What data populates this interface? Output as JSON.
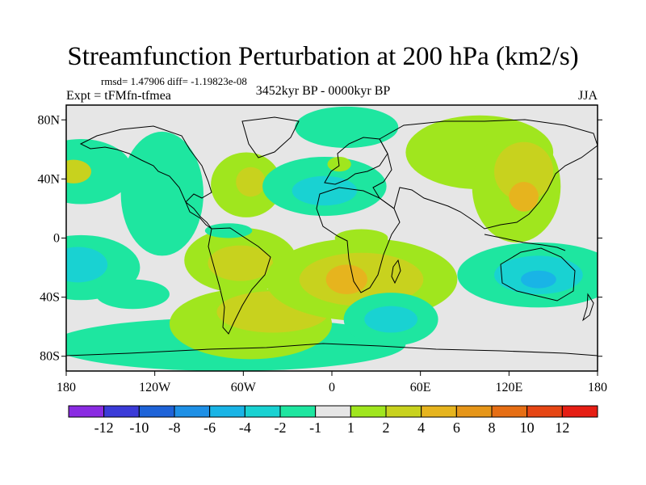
{
  "title": "Streamfunction Perturbation at 200 hPa (km2/s)",
  "stats": "rmsd= 1.47906 diff= -1.19823e-08",
  "experiment": "Expt = tFMfn-tfmea",
  "period": "3452kyr BP - 0000kyr BP",
  "season": "JJA",
  "map": {
    "lat_ticks": [
      {
        "label": "80N",
        "value": 80
      },
      {
        "label": "40N",
        "value": 40
      },
      {
        "label": "0",
        "value": 0
      },
      {
        "label": "40S",
        "value": -40
      },
      {
        "label": "80S",
        "value": -80
      }
    ],
    "lon_ticks": [
      {
        "label": "180",
        "value": -180
      },
      {
        "label": "120W",
        "value": -120
      },
      {
        "label": "60W",
        "value": -60
      },
      {
        "label": "0",
        "value": 0
      },
      {
        "label": "60E",
        "value": 60
      },
      {
        "label": "120E",
        "value": 120
      },
      {
        "label": "180",
        "value": 180
      }
    ],
    "lon_range": [
      -180,
      180
    ],
    "lat_range": [
      -90,
      90
    ],
    "background_color": "#e6e6e6"
  },
  "colorbar": {
    "colors": [
      "#8a2be2",
      "#3b3bd8",
      "#1e63d8",
      "#1e90e6",
      "#19b4e6",
      "#19d2d2",
      "#1ee6a0",
      "#e6e6e6",
      "#a0e61e",
      "#c8d21e",
      "#e6b41e",
      "#e69619",
      "#e66e14",
      "#e64614",
      "#e61e14"
    ],
    "labels": [
      "-12",
      "-10",
      "-8",
      "-6",
      "-4",
      "-2",
      "-1",
      "1",
      "2",
      "4",
      "6",
      "8",
      "10",
      "12"
    ]
  },
  "regions": [
    {
      "lon": -170,
      "lat": 45,
      "rx": 35,
      "ry": 22,
      "color": "#1ee6a0",
      "level": "-1"
    },
    {
      "lon": -175,
      "lat": 45,
      "rx": 12,
      "ry": 8,
      "color": "#c8d21e",
      "level": "4"
    },
    {
      "lon": -170,
      "lat": -20,
      "rx": 40,
      "ry": 22,
      "color": "#1ee6a0",
      "level": "-1"
    },
    {
      "lon": -172,
      "lat": -18,
      "rx": 20,
      "ry": 12,
      "color": "#19d2d2",
      "level": "-2"
    },
    {
      "lon": -135,
      "lat": -38,
      "rx": 25,
      "ry": 10,
      "color": "#1ee6a0",
      "level": "-1"
    },
    {
      "lon": -115,
      "lat": 30,
      "rx": 28,
      "ry": 42,
      "color": "#1ee6a0",
      "level": "-1"
    },
    {
      "lon": -70,
      "lat": -72,
      "rx": 120,
      "ry": 18,
      "color": "#1ee6a0",
      "level": "-1"
    },
    {
      "lon": -55,
      "lat": -58,
      "rx": 55,
      "ry": 24,
      "color": "#a0e61e",
      "level": "2"
    },
    {
      "lon": -40,
      "lat": -50,
      "rx": 38,
      "ry": 14,
      "color": "#c8d21e",
      "level": "4"
    },
    {
      "lon": -62,
      "lat": -15,
      "rx": 38,
      "ry": 22,
      "color": "#a0e61e",
      "level": "2"
    },
    {
      "lon": -62,
      "lat": -17,
      "rx": 22,
      "ry": 12,
      "color": "#c8d21e",
      "level": "4"
    },
    {
      "lon": -58,
      "lat": 36,
      "rx": 24,
      "ry": 22,
      "color": "#a0e61e",
      "level": "2"
    },
    {
      "lon": -55,
      "lat": 38,
      "rx": 10,
      "ry": 10,
      "color": "#c8d21e",
      "level": "4"
    },
    {
      "lon": -70,
      "lat": 5,
      "rx": 16,
      "ry": 5,
      "color": "#1ee6a0",
      "level": "-1"
    },
    {
      "lon": -5,
      "lat": 35,
      "rx": 42,
      "ry": 20,
      "color": "#1ee6a0",
      "level": "-1"
    },
    {
      "lon": -5,
      "lat": 32,
      "rx": 22,
      "ry": 10,
      "color": "#19d2d2",
      "level": "-2"
    },
    {
      "lon": 10,
      "lat": 75,
      "rx": 35,
      "ry": 14,
      "color": "#1ee6a0",
      "level": "-1"
    },
    {
      "lon": 5,
      "lat": 50,
      "rx": 8,
      "ry": 5,
      "color": "#a0e61e",
      "level": "2"
    },
    {
      "lon": 20,
      "lat": 0,
      "rx": 18,
      "ry": 6,
      "color": "#a0e61e",
      "level": "2"
    },
    {
      "lon": 20,
      "lat": -28,
      "rx": 65,
      "ry": 28,
      "color": "#a0e61e",
      "level": "2"
    },
    {
      "lon": 20,
      "lat": -28,
      "rx": 42,
      "ry": 18,
      "color": "#c8d21e",
      "level": "4"
    },
    {
      "lon": 10,
      "lat": -28,
      "rx": 14,
      "ry": 10,
      "color": "#e6b41e",
      "level": "6"
    },
    {
      "lon": 40,
      "lat": -55,
      "rx": 32,
      "ry": 18,
      "color": "#1ee6a0",
      "level": "-1"
    },
    {
      "lon": 40,
      "lat": -55,
      "rx": 18,
      "ry": 9,
      "color": "#19d2d2",
      "level": "-2"
    },
    {
      "lon": 100,
      "lat": 58,
      "rx": 50,
      "ry": 25,
      "color": "#a0e61e",
      "level": "2"
    },
    {
      "lon": 125,
      "lat": 35,
      "rx": 30,
      "ry": 38,
      "color": "#a0e61e",
      "level": "2"
    },
    {
      "lon": 130,
      "lat": 45,
      "rx": 20,
      "ry": 20,
      "color": "#c8d21e",
      "level": "4"
    },
    {
      "lon": 130,
      "lat": 28,
      "rx": 10,
      "ry": 10,
      "color": "#e6b41e",
      "level": "6"
    },
    {
      "lon": 140,
      "lat": -25,
      "rx": 55,
      "ry": 22,
      "color": "#1ee6a0",
      "level": "-1"
    },
    {
      "lon": 140,
      "lat": -25,
      "rx": 30,
      "ry": 13,
      "color": "#19d2d2",
      "level": "-2"
    },
    {
      "lon": 140,
      "lat": -28,
      "rx": 12,
      "ry": 6,
      "color": "#19b4e6",
      "level": "-4"
    }
  ]
}
